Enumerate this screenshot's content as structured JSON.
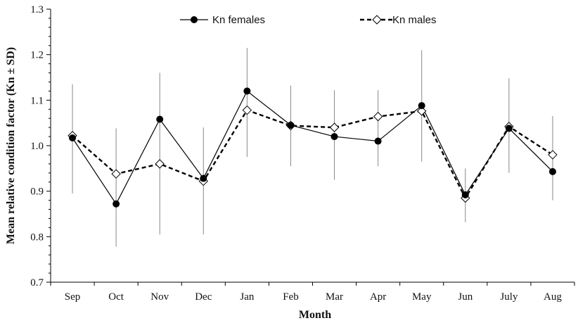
{
  "chart_data": {
    "type": "line",
    "title": "",
    "xlabel": "Month",
    "ylabel": "Mean relative condition factor (Kn ± SD)",
    "ylim": [
      0.7,
      1.3
    ],
    "yticks": [
      "0.7",
      "0.8",
      "0.9",
      "1.0",
      "1.1",
      "1.2",
      "1.3"
    ],
    "yticks_values": [
      0.7,
      0.8,
      0.9,
      1.0,
      1.1,
      1.2,
      1.3
    ],
    "categories": [
      "Sep",
      "Oct",
      "Nov",
      "Dec",
      "Jan",
      "Feb",
      "Mar",
      "Apr",
      "May",
      "Jun",
      "July",
      "Aug"
    ],
    "legend_position": "top-center",
    "grid": false,
    "error_bars": {
      "low": [
        0.895,
        0.778,
        0.805,
        0.805,
        0.975,
        0.955,
        0.925,
        0.955,
        0.965,
        0.832,
        0.94,
        0.88
      ],
      "high": [
        1.135,
        1.038,
        1.16,
        1.04,
        1.215,
        1.132,
        1.122,
        1.122,
        1.21,
        0.95,
        1.148,
        1.065
      ]
    },
    "series": [
      {
        "name": "Kn females",
        "style": "solid",
        "marker": "filled-circle",
        "color": "#000000",
        "values": [
          1.017,
          0.872,
          1.058,
          0.928,
          1.12,
          1.045,
          1.02,
          1.01,
          1.088,
          0.892,
          1.038,
          0.943
        ]
      },
      {
        "name": "Kn males",
        "style": "dashed",
        "marker": "open-diamond",
        "color": "#000000",
        "values": [
          1.022,
          0.938,
          0.96,
          0.922,
          1.078,
          1.044,
          1.04,
          1.064,
          1.076,
          0.885,
          1.042,
          0.98
        ]
      }
    ]
  }
}
